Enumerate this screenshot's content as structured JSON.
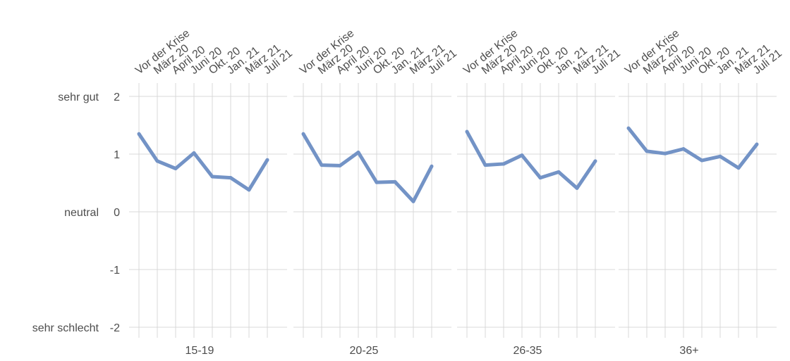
{
  "chart_data": {
    "type": "line",
    "categories": [
      "Vor der Krise",
      "März 20",
      "April 20",
      "Juni 20",
      "Okt. 20",
      "Jan. 21",
      "März 21",
      "Juli 21"
    ],
    "y_ticks": [
      {
        "value": 2,
        "label": "2",
        "name": "sehr gut"
      },
      {
        "value": 1,
        "label": "1",
        "name": ""
      },
      {
        "value": 0,
        "label": "0",
        "name": "neutral"
      },
      {
        "value": -1,
        "label": "-1",
        "name": ""
      },
      {
        "value": -2,
        "label": "-2",
        "name": "sehr schlecht"
      }
    ],
    "ylim": [
      -2,
      2
    ],
    "line_color": "#7393c6",
    "grid": true,
    "panels": [
      {
        "title": "15-19",
        "values": [
          1.35,
          0.88,
          0.75,
          1.02,
          0.61,
          0.59,
          0.38,
          0.9
        ]
      },
      {
        "title": "20-25",
        "values": [
          1.35,
          0.81,
          0.8,
          1.03,
          0.51,
          0.52,
          0.18,
          0.79
        ]
      },
      {
        "title": "26-35",
        "values": [
          1.39,
          0.81,
          0.83,
          0.98,
          0.59,
          0.69,
          0.41,
          0.88
        ]
      },
      {
        "title": "36+",
        "values": [
          1.45,
          1.05,
          1.01,
          1.09,
          0.89,
          0.96,
          0.76,
          1.17
        ]
      }
    ]
  }
}
